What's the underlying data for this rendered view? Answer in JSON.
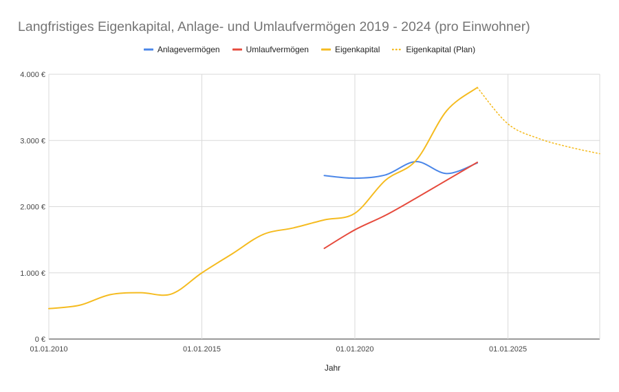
{
  "chart_data": {
    "type": "line",
    "title": "Langfristiges Eigenkapital, Anlage- und Umlaufvermögen 2019 - 2024 (pro Einwohner)",
    "xlabel": "Jahr",
    "ylabel": "",
    "x_axis_type": "date",
    "xlim": [
      "2010-01-01",
      "2028-01-01"
    ],
    "ylim": [
      0,
      4000
    ],
    "x_ticks": [
      "01.01.2010",
      "01.01.2015",
      "01.01.2020",
      "01.01.2025"
    ],
    "y_ticks": [
      "0 €",
      "1.000 €",
      "2.000 €",
      "3.000 €",
      "4.000 €"
    ],
    "grid": true,
    "legend_position": "top-center",
    "series": [
      {
        "name": "Anlagevermögen",
        "color": "#4a86e8",
        "style": "solid",
        "points": [
          {
            "x": "2019-01-01",
            "y": 2470
          },
          {
            "x": "2020-01-01",
            "y": 2430
          },
          {
            "x": "2021-01-01",
            "y": 2480
          },
          {
            "x": "2022-01-01",
            "y": 2680
          },
          {
            "x": "2023-01-01",
            "y": 2500
          },
          {
            "x": "2024-01-01",
            "y": 2660
          }
        ]
      },
      {
        "name": "Umlaufvermögen",
        "color": "#e64a3c",
        "style": "solid",
        "points": [
          {
            "x": "2019-01-01",
            "y": 1370
          },
          {
            "x": "2020-01-01",
            "y": 1650
          },
          {
            "x": "2021-01-01",
            "y": 1870
          },
          {
            "x": "2022-01-01",
            "y": 2130
          },
          {
            "x": "2023-01-01",
            "y": 2400
          },
          {
            "x": "2024-01-01",
            "y": 2670
          }
        ]
      },
      {
        "name": "Eigenkapital",
        "color": "#f5bb1f",
        "style": "solid",
        "points": [
          {
            "x": "2010-01-01",
            "y": 460
          },
          {
            "x": "2011-01-01",
            "y": 510
          },
          {
            "x": "2012-01-01",
            "y": 670
          },
          {
            "x": "2013-01-01",
            "y": 700
          },
          {
            "x": "2014-01-01",
            "y": 680
          },
          {
            "x": "2015-01-01",
            "y": 1000
          },
          {
            "x": "2016-01-01",
            "y": 1290
          },
          {
            "x": "2017-01-01",
            "y": 1580
          },
          {
            "x": "2018-01-01",
            "y": 1680
          },
          {
            "x": "2019-01-01",
            "y": 1800
          },
          {
            "x": "2020-01-01",
            "y": 1900
          },
          {
            "x": "2021-01-01",
            "y": 2400
          },
          {
            "x": "2022-01-01",
            "y": 2700
          },
          {
            "x": "2023-01-01",
            "y": 3450
          },
          {
            "x": "2024-01-01",
            "y": 3800
          }
        ]
      },
      {
        "name": "Eigenkapital (Plan)",
        "color": "#f5bb1f",
        "style": "dotted",
        "points": [
          {
            "x": "2024-01-01",
            "y": 3800
          },
          {
            "x": "2025-01-01",
            "y": 3250
          },
          {
            "x": "2026-01-01",
            "y": 3030
          },
          {
            "x": "2027-01-01",
            "y": 2900
          },
          {
            "x": "2028-01-01",
            "y": 2800
          }
        ]
      }
    ]
  }
}
